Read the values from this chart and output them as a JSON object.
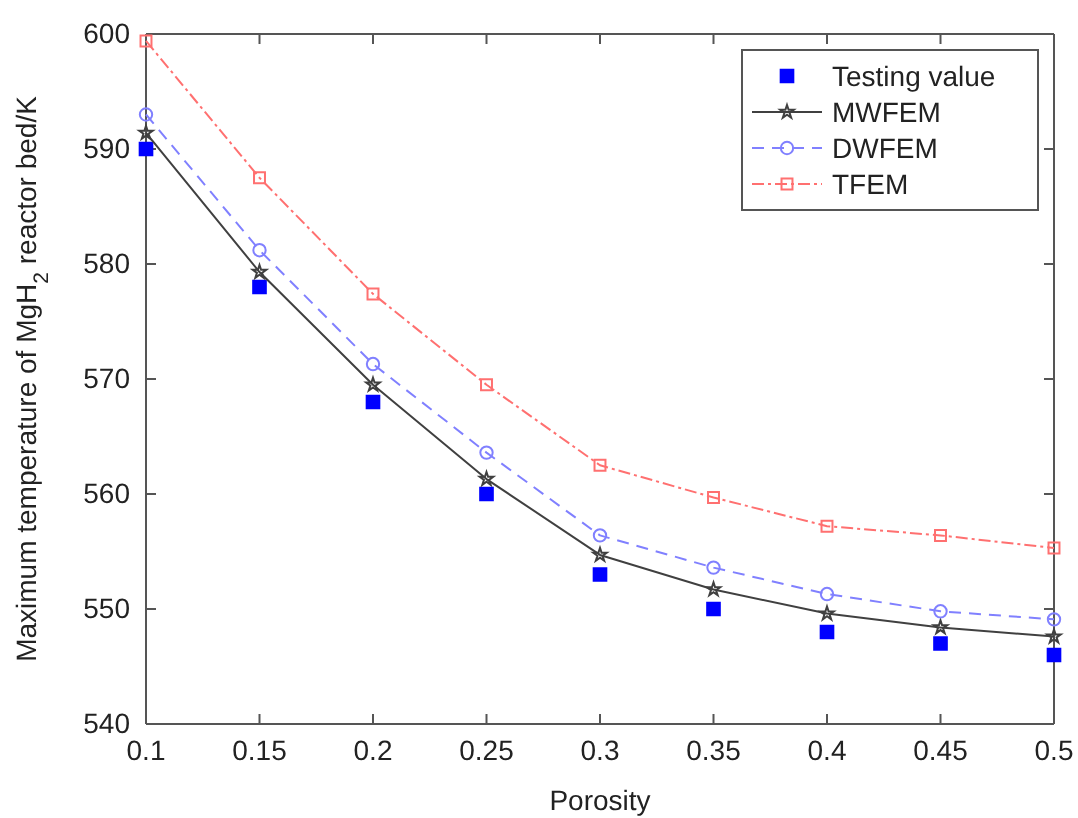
{
  "chart_data": {
    "type": "line",
    "xlabel": "Porosity",
    "ylabel": "Maximum temperature of MgH$_{2}$ reactor bed/K",
    "x": [
      0.1,
      0.15,
      0.2,
      0.25,
      0.3,
      0.35,
      0.4,
      0.45,
      0.5
    ],
    "series": [
      {
        "name": "Testing value",
        "type": "scatter",
        "color": "#0000ff",
        "marker": "square",
        "values": [
          590,
          578,
          568,
          560,
          553,
          550,
          548,
          547,
          546
        ]
      },
      {
        "name": "MWFEM",
        "type": "line",
        "color": "#404040",
        "marker": "star",
        "line_style": "solid",
        "values": [
          591.4,
          579.3,
          569.5,
          561.3,
          554.7,
          551.7,
          549.6,
          548.4,
          547.6
        ]
      },
      {
        "name": "DWFEM",
        "type": "line",
        "color": "#8080ff",
        "marker": "circle",
        "line_style": "dashed",
        "values": [
          593,
          581.2,
          571.3,
          563.6,
          556.4,
          553.6,
          551.3,
          549.8,
          549.1
        ]
      },
      {
        "name": "TFEM",
        "type": "line",
        "color": "#ff7070",
        "marker": "square",
        "line_style": "dotted",
        "values": [
          599.4,
          587.5,
          577.4,
          569.5,
          562.5,
          559.7,
          557.2,
          556.4,
          555.3
        ]
      }
    ],
    "xlim": [
      0.1,
      0.5
    ],
    "xticks": [
      0.1,
      0.15,
      0.2,
      0.25,
      0.3,
      0.35,
      0.4,
      0.45,
      0.5
    ],
    "ylim": [
      540,
      600
    ],
    "yticks": [
      540,
      550,
      560,
      570,
      580,
      590,
      600
    ],
    "grid": false,
    "legend": "top right"
  }
}
